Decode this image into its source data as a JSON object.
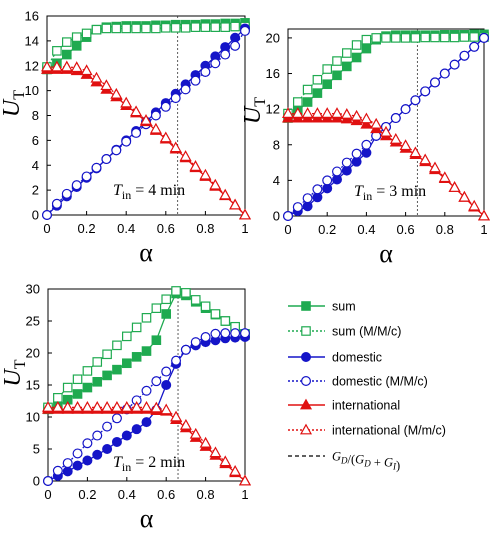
{
  "colors": {
    "sum": "#1faa50",
    "domestic": "#1515c8",
    "international": "#e01010",
    "marker": "#000000"
  },
  "legend": {
    "items": [
      {
        "key": "sum",
        "label": "sum",
        "filled": true,
        "marker": "square",
        "color": "#1faa50"
      },
      {
        "key": "sum_mmc",
        "label": "sum (M/M/c)",
        "filled": false,
        "marker": "square",
        "color": "#1faa50"
      },
      {
        "key": "domestic",
        "label": "domestic",
        "filled": true,
        "marker": "circle",
        "color": "#1515c8"
      },
      {
        "key": "domestic_mmc",
        "label": "domestic (M/M/c)",
        "filled": false,
        "marker": "circle",
        "color": "#1515c8"
      },
      {
        "key": "international",
        "label": "international",
        "filled": true,
        "marker": "triangle",
        "color": "#e01010"
      },
      {
        "key": "international_mmc",
        "label": "international (M/m/c)",
        "filled": false,
        "marker": "triangle",
        "color": "#e01010"
      }
    ],
    "marker_line_label": "G_D/(G_D + G_I)"
  },
  "chart_data": [
    {
      "type": "line",
      "annotation": {
        "var": "T",
        "sub": "in",
        "text": " = 4 min"
      },
      "xlabel": "α",
      "ylabel": {
        "main": "U",
        "sub": "T"
      },
      "xlim": [
        0,
        1
      ],
      "ylim": [
        0,
        16
      ],
      "xticks": [
        "0",
        "0.2",
        "0.4",
        "0.6",
        "0.8",
        "1"
      ],
      "yticks": [
        "0",
        "2",
        "4",
        "6",
        "8",
        "10",
        "12",
        "14",
        "16"
      ],
      "ratio_line": 0.66,
      "x": [
        0,
        0.05,
        0.1,
        0.15,
        0.2,
        0.25,
        0.3,
        0.35,
        0.4,
        0.45,
        0.5,
        0.55,
        0.6,
        0.65,
        0.7,
        0.75,
        0.8,
        0.85,
        0.9,
        0.95,
        1.0
      ],
      "series": [
        {
          "key": "sum",
          "values": [
            11.7,
            12.2,
            12.9,
            13.6,
            14.3,
            14.9,
            15.1,
            15.15,
            15.2,
            15.2,
            15.2,
            15.25,
            15.25,
            15.3,
            15.3,
            15.3,
            15.35,
            15.35,
            15.4,
            15.4,
            15.45
          ]
        },
        {
          "key": "sum_mmc",
          "values": [
            11.9,
            13.2,
            13.9,
            14.3,
            14.6,
            14.9,
            15.0,
            15.0,
            15.0,
            15.0,
            15.0,
            15.0,
            15.05,
            15.05,
            15.05,
            15.1,
            15.1,
            15.1,
            15.1,
            15.15,
            15.15
          ]
        },
        {
          "key": "domestic",
          "values": [
            0,
            0.75,
            1.5,
            2.25,
            3.0,
            3.75,
            4.5,
            5.25,
            6.0,
            6.75,
            7.5,
            8.25,
            9.0,
            9.75,
            10.5,
            11.25,
            12.0,
            12.75,
            13.5,
            14.25,
            15.0
          ]
        },
        {
          "key": "domestic_mmc",
          "values": [
            0,
            0.9,
            1.7,
            2.4,
            3.1,
            3.8,
            4.5,
            5.2,
            5.9,
            6.6,
            7.3,
            8.0,
            8.7,
            9.4,
            10.1,
            10.8,
            11.5,
            12.2,
            12.9,
            13.6,
            14.8
          ]
        },
        {
          "key": "international",
          "values": [
            11.7,
            11.7,
            11.7,
            11.6,
            11.3,
            10.7,
            10.1,
            9.5,
            8.8,
            8.2,
            7.5,
            6.8,
            6.1,
            5.3,
            4.6,
            3.8,
            3.1,
            2.3,
            1.55,
            0.8,
            0
          ]
        },
        {
          "key": "international_mmc",
          "values": [
            11.9,
            11.9,
            11.9,
            11.85,
            11.6,
            11.0,
            10.4,
            9.7,
            9.0,
            8.3,
            7.6,
            6.9,
            6.2,
            5.4,
            4.7,
            3.9,
            3.2,
            2.4,
            1.6,
            0.8,
            0
          ]
        }
      ]
    },
    {
      "type": "line",
      "annotation": {
        "var": "T",
        "sub": "in",
        "text": " = 3 min"
      },
      "xlabel": "α",
      "ylabel": {
        "main": "U",
        "sub": "T"
      },
      "xlim": [
        0,
        1
      ],
      "ylim": [
        0,
        21
      ],
      "xticks": [
        "0",
        "0.2",
        "0.4",
        "0.6",
        "0.8",
        "1"
      ],
      "yticks": [
        "0",
        "4",
        "8",
        "12",
        "16",
        "20"
      ],
      "ytick_values": [
        0,
        4,
        8,
        12,
        16,
        20
      ],
      "ratio_line": 0.66,
      "x": [
        0,
        0.05,
        0.1,
        0.15,
        0.2,
        0.25,
        0.3,
        0.35,
        0.4,
        0.45,
        0.5,
        0.55,
        0.6,
        0.65,
        0.7,
        0.75,
        0.8,
        0.85,
        0.9,
        0.95,
        1.0
      ],
      "series": [
        {
          "key": "sum",
          "values": [
            11.0,
            11.8,
            12.8,
            13.8,
            14.8,
            15.8,
            16.8,
            17.8,
            18.8,
            19.8,
            20.2,
            20.3,
            20.3,
            20.3,
            20.3,
            20.3,
            20.35,
            20.35,
            20.35,
            20.4,
            20.4
          ]
        },
        {
          "key": "sum_mmc",
          "values": [
            11.5,
            12.8,
            14.2,
            15.3,
            16.5,
            17.4,
            18.3,
            19.2,
            19.8,
            20.0,
            20.0,
            20.0,
            20.0,
            20.0,
            20.05,
            20.05,
            20.05,
            20.05,
            20.1,
            20.1,
            20.1
          ]
        },
        {
          "key": "domestic",
          "values": [
            0,
            0.55,
            1.1,
            2.1,
            3.1,
            4.1,
            5.1,
            6.1,
            7.1,
            9.0,
            10.0,
            11.0,
            12.0,
            13.0,
            14.0,
            15.0,
            16.0,
            17.0,
            18.0,
            19.0,
            20.0
          ]
        },
        {
          "key": "domestic_mmc",
          "values": [
            0,
            1.0,
            2.0,
            3.0,
            4.0,
            5.0,
            6.0,
            7.0,
            8.0,
            9.0,
            10.0,
            11.0,
            12.0,
            13.0,
            14.0,
            15.0,
            16.0,
            17.0,
            18.0,
            19.0,
            20.0
          ]
        },
        {
          "key": "international",
          "values": [
            11.0,
            11.0,
            11.0,
            11.0,
            11.0,
            11.0,
            10.9,
            10.7,
            10.3,
            9.8,
            9.0,
            8.3,
            7.6,
            6.9,
            6.1,
            5.2,
            4.2,
            3.2,
            2.1,
            1.0,
            0
          ]
        },
        {
          "key": "international_mmc",
          "values": [
            11.5,
            11.5,
            11.5,
            11.5,
            11.5,
            11.5,
            11.4,
            11.2,
            10.9,
            10.3,
            9.4,
            8.6,
            7.9,
            7.1,
            6.3,
            5.4,
            4.3,
            3.2,
            2.1,
            1.1,
            0
          ]
        }
      ]
    },
    {
      "type": "line",
      "annotation": {
        "var": "T",
        "sub": "in",
        "text": " = 2 min"
      },
      "xlabel": "α",
      "ylabel": {
        "main": "U",
        "sub": "T"
      },
      "xlim": [
        0,
        1
      ],
      "ylim": [
        0,
        30
      ],
      "xticks": [
        "0",
        "0.2",
        "0.4",
        "0.6",
        "0.8",
        "1"
      ],
      "yticks": [
        "0",
        "5",
        "10",
        "15",
        "20",
        "25",
        "30"
      ],
      "ratio_line": 0.66,
      "x": [
        0,
        0.05,
        0.1,
        0.15,
        0.2,
        0.25,
        0.3,
        0.35,
        0.4,
        0.45,
        0.5,
        0.55,
        0.6,
        0.65,
        0.7,
        0.75,
        0.8,
        0.85,
        0.9,
        0.95,
        1.0
      ],
      "series": [
        {
          "key": "sum",
          "values": [
            11.2,
            11.7,
            12.7,
            13.6,
            14.6,
            15.5,
            16.5,
            17.4,
            18.4,
            19.4,
            20.3,
            22.0,
            26.1,
            29.3,
            29.0,
            28.0,
            27.0,
            26.0,
            25.0,
            24.0,
            22.8
          ]
        },
        {
          "key": "sum_mmc",
          "values": [
            11.5,
            13.0,
            14.6,
            15.9,
            17.2,
            18.6,
            19.8,
            21.2,
            22.6,
            24.0,
            25.5,
            27.0,
            28.4,
            29.7,
            29.4,
            28.3,
            27.3,
            26.1,
            25.0,
            24.1,
            23.0
          ]
        },
        {
          "key": "domestic",
          "values": [
            0,
            0.8,
            1.5,
            2.4,
            3.2,
            4.1,
            5.0,
            6.1,
            7.1,
            8.1,
            9.2,
            11.1,
            15.0,
            18.3,
            20.5,
            21.2,
            21.7,
            22.0,
            22.3,
            22.4,
            22.5
          ]
        },
        {
          "key": "domestic_mmc",
          "values": [
            0,
            1.6,
            2.8,
            4.3,
            5.9,
            7.1,
            8.5,
            9.8,
            11.2,
            12.6,
            14.1,
            15.6,
            17.1,
            18.8,
            20.5,
            21.7,
            22.5,
            23.0,
            23.1,
            23.1,
            23.1
          ]
        },
        {
          "key": "international",
          "values": [
            11.2,
            11.2,
            11.2,
            11.2,
            11.2,
            11.2,
            11.2,
            11.2,
            11.2,
            11.2,
            11.2,
            11.0,
            10.9,
            9.6,
            8.3,
            6.8,
            5.4,
            4.0,
            2.7,
            1.3,
            0
          ]
        },
        {
          "key": "international_mmc",
          "values": [
            11.5,
            11.5,
            11.5,
            11.5,
            11.5,
            11.5,
            11.5,
            11.5,
            11.5,
            11.5,
            11.5,
            11.4,
            11.1,
            10.0,
            8.7,
            7.3,
            5.9,
            4.4,
            3.0,
            1.5,
            0
          ]
        }
      ]
    }
  ]
}
